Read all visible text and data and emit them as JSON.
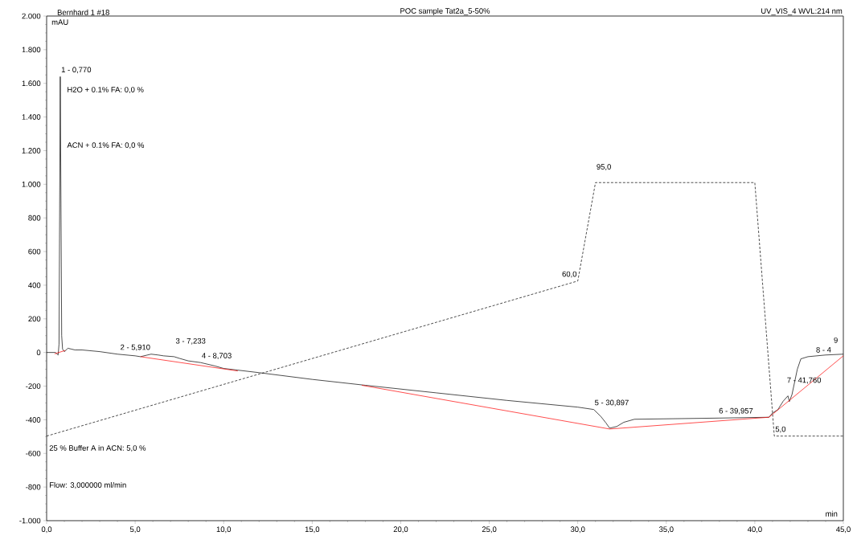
{
  "chart_data": {
    "type": "line",
    "title": "POC sample Tat2a_5-50%",
    "xlabel": "min",
    "ylabel": "mAU",
    "xlim": [
      0,
      45
    ],
    "ylim": [
      -1000,
      2000
    ],
    "xticks": [
      {
        "value": 0,
        "label": "0,0"
      },
      {
        "value": 5,
        "label": "5,0"
      },
      {
        "value": 10,
        "label": "10,0"
      },
      {
        "value": 15,
        "label": "15,0"
      },
      {
        "value": 20,
        "label": "20,0"
      },
      {
        "value": 25,
        "label": "25,0"
      },
      {
        "value": 30,
        "label": "30,0"
      },
      {
        "value": 35,
        "label": "35,0"
      },
      {
        "value": 40,
        "label": "40,0"
      },
      {
        "value": 45,
        "label": "45,0"
      }
    ],
    "yticks": [
      {
        "value": -1000,
        "label": "-1.000"
      },
      -800,
      -600,
      -400,
      -200,
      0,
      200,
      400,
      600,
      800,
      {
        "value": 1000,
        "label": "1.000"
      },
      {
        "value": 1200,
        "label": "1.200"
      },
      {
        "value": 1400,
        "label": "1.400"
      },
      {
        "value": 1600,
        "label": "1.600"
      },
      {
        "value": 1800,
        "label": "1.800"
      },
      {
        "value": 2000,
        "label": "2.000"
      }
    ],
    "series": [
      {
        "color": "#000000",
        "x": [
          0,
          0.5,
          0.65,
          0.7,
          0.77,
          0.85,
          0.9,
          1.0,
          1.2,
          1.4,
          1.6,
          2,
          3,
          4,
          5,
          5.3,
          5.9,
          6.3,
          6.6,
          7.2,
          7.5,
          8,
          8.7,
          9.5,
          10,
          10.8,
          12,
          15,
          18,
          22,
          26,
          30,
          30.9,
          31.3,
          31.6,
          31.8,
          32.2,
          32.6,
          33.2,
          38,
          40.8,
          41.0,
          41.3,
          41.6,
          41.87,
          41.95,
          42.1,
          42.4,
          42.6,
          43.0,
          43.5,
          44,
          45
        ],
        "values": [
          0,
          0,
          -15,
          50,
          1640,
          100,
          20,
          5,
          25,
          20,
          15,
          15,
          5,
          -10,
          -20,
          -25,
          -10,
          -15,
          -20,
          -25,
          -35,
          -50,
          -60,
          -80,
          -95,
          -105,
          -120,
          -160,
          -195,
          -240,
          -285,
          -325,
          -339,
          -380,
          -420,
          -450,
          -440,
          -415,
          -397,
          -390,
          -385,
          -360,
          -340,
          -290,
          -258,
          -292,
          -250,
          -100,
          -38,
          -25,
          -20,
          -15,
          -10
        ]
      },
      {
        "color": "#ff0000",
        "x": [
          0.45,
          1.05,
          3,
          5.3,
          10.8,
          14,
          17.8,
          31.8,
          40.8,
          45
        ],
        "values": [
          -8,
          12,
          null,
          -25,
          -110,
          null,
          -195,
          -455,
          -385,
          -20
        ]
      },
      {
        "color": "#000000",
        "line_style": "dashed",
        "x": [
          0,
          30,
          31,
          40,
          41.1,
          45
        ],
        "values": [
          -497,
          425,
          1010,
          1010,
          -497,
          -497
        ]
      }
    ],
    "annotations": [
      "Bernhard 1 #18",
      "UV_VIS_4 WVL:214 nm",
      "H2O + 0.1% FA: 0,0 %",
      "ACN + 0.1% FA: 0,0 %",
      "25 % Buffer A in ACN: 5,0 %",
      "Flow: 3,000000 ml/min",
      {
        "text": "1 - 0,770",
        "x": 0.77,
        "y": 1640
      },
      {
        "text": "2 - 5,910",
        "x": 5.91,
        "y": -10
      },
      {
        "text": "3 - 7,233",
        "x": 7.233,
        "y": -25
      },
      {
        "text": "4 - 8,703",
        "x": 8.703,
        "y": -60
      },
      {
        "text": "5 - 30,897",
        "x": 30.897,
        "y": -339
      },
      {
        "text": "6 - 39,957",
        "x": 39.957,
        "y": -388
      },
      {
        "text": "7 - 41,760",
        "x": 41.76,
        "y": -258
      },
      {
        "text": "8 - 4",
        "x": 43.4,
        "y": -20
      },
      {
        "text": "9",
        "x": 44.4,
        "y": -15
      },
      {
        "text": "60,0",
        "x": 30,
        "y": 425
      },
      {
        "text": "95,0",
        "x": 31,
        "y": 1010
      },
      {
        "text": "5,0",
        "x": 41.1,
        "y": -497
      }
    ]
  }
}
